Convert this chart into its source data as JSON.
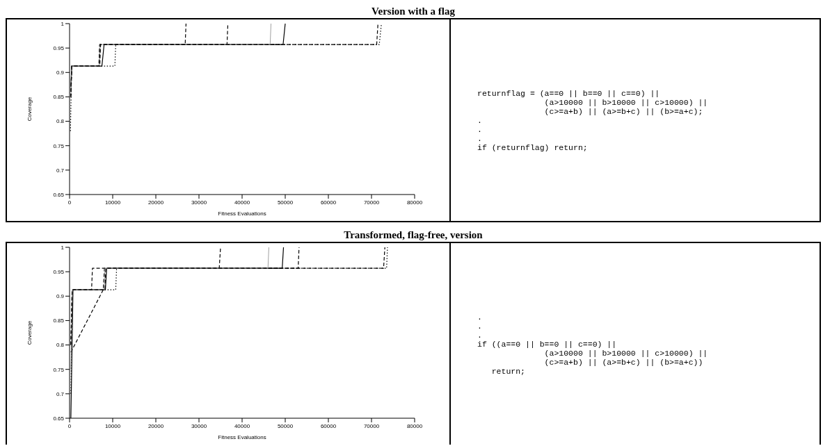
{
  "chart_data": [
    {
      "type": "line",
      "title": "Version with a flag",
      "xlabel": "Fitness Evaluations",
      "ylabel": "Coverage",
      "xlim": [
        0,
        80000
      ],
      "ylim": [
        0.65,
        1
      ],
      "xticks": [
        0,
        10000,
        20000,
        30000,
        40000,
        50000,
        60000,
        70000,
        80000
      ],
      "yticks": [
        0.65,
        0.7,
        0.75,
        0.8,
        0.85,
        0.9,
        0.95,
        1
      ],
      "grid": false,
      "legend": false,
      "marker": "none",
      "series": [
        {
          "color": "#000000",
          "line_style": "solid",
          "x": [
            300,
            500,
            7500,
            8000,
            49500,
            50000
          ],
          "values": [
            0.87,
            0.913,
            0.913,
            0.957,
            0.957,
            1
          ]
        },
        {
          "color": "#000000",
          "line_style": "dotted",
          "x": [
            200,
            500,
            10500,
            10700,
            71800,
            72300
          ],
          "values": [
            0.78,
            0.913,
            0.913,
            0.957,
            0.957,
            1
          ]
        },
        {
          "color": "#000000",
          "line_style": "dashed",
          "x": [
            300,
            500,
            6800,
            7000,
            26800,
            27000
          ],
          "values": [
            0.86,
            0.913,
            0.913,
            0.957,
            0.957,
            1
          ]
        },
        {
          "color": "#000000",
          "line_style": "dashed",
          "x": [
            300,
            500,
            6800,
            7000,
            36500,
            36700
          ],
          "values": [
            0.85,
            0.913,
            0.913,
            0.957,
            0.957,
            1
          ]
        },
        {
          "color": "#888888",
          "line_style": "solid",
          "x": [
            300,
            500,
            6900,
            7100,
            46500,
            46700
          ],
          "values": [
            0.86,
            0.913,
            0.913,
            0.957,
            0.957,
            1
          ]
        },
        {
          "color": "#000000",
          "line_style": "dashed",
          "x": [
            300,
            500,
            7000,
            7200,
            71200,
            71500
          ],
          "values": [
            0.85,
            0.913,
            0.913,
            0.957,
            0.957,
            1
          ]
        }
      ]
    },
    {
      "type": "other",
      "annotations": [
        "returnflag = (a==0 || b==0 || c==0) ||",
        "              (a>10000 || b>10000 || c>10000) ||",
        "              (c>=a+b) || (a>=b+c) || (b>=a+c);",
        ".",
        ".",
        ".",
        "if (returnflag) return;"
      ]
    },
    {
      "type": "line",
      "title": "Transformed, flag-free, version",
      "xlabel": "Fitness Evaluations",
      "ylabel": "Coverage",
      "xlim": [
        0,
        80000
      ],
      "ylim": [
        0.65,
        1
      ],
      "xticks": [
        0,
        10000,
        20000,
        30000,
        40000,
        50000,
        60000,
        70000,
        80000
      ],
      "yticks": [
        0.65,
        0.7,
        0.75,
        0.8,
        0.85,
        0.9,
        0.95,
        1
      ],
      "grid": false,
      "legend": false,
      "marker": "none",
      "series": [
        {
          "color": "#000000",
          "line_style": "solid",
          "x": [
            300,
            800,
            8300,
            8600,
            49300,
            49600
          ],
          "values": [
            0.65,
            0.913,
            0.913,
            0.957,
            0.957,
            1
          ]
        },
        {
          "color": "#000000",
          "line_style": "dotted",
          "x": [
            300,
            700,
            10700,
            10900,
            73500,
            73700
          ],
          "values": [
            0.7,
            0.913,
            0.913,
            0.957,
            0.957,
            1
          ]
        },
        {
          "color": "#000000",
          "line_style": "dashed",
          "x": [
            300,
            7800,
            8100,
            53000,
            53200
          ],
          "values": [
            0.785,
            0.913,
            0.957,
            0.957,
            1
          ]
        },
        {
          "color": "#000000",
          "line_style": "dashed",
          "x": [
            300,
            600,
            5100,
            5300,
            34700,
            35000
          ],
          "values": [
            0.8,
            0.913,
            0.913,
            0.957,
            0.957,
            1
          ]
        },
        {
          "color": "#888888",
          "line_style": "solid",
          "x": [
            300,
            700,
            8000,
            8200,
            46000,
            46200
          ],
          "values": [
            0.75,
            0.913,
            0.913,
            0.957,
            0.957,
            1
          ]
        },
        {
          "color": "#000000",
          "line_style": "dashed",
          "x": [
            300,
            600,
            8200,
            8400,
            72800,
            73100
          ],
          "values": [
            0.8,
            0.913,
            0.913,
            0.957,
            0.957,
            1
          ]
        }
      ]
    },
    {
      "type": "other",
      "annotations": [
        ".",
        ".",
        ".",
        "if ((a==0 || b==0 || c==0) ||",
        "              (a>10000 || b>10000 || c>10000) ||",
        "              (c>=a+b) || (a>=b+c) || (b>=a+c))",
        "   return;"
      ]
    }
  ]
}
